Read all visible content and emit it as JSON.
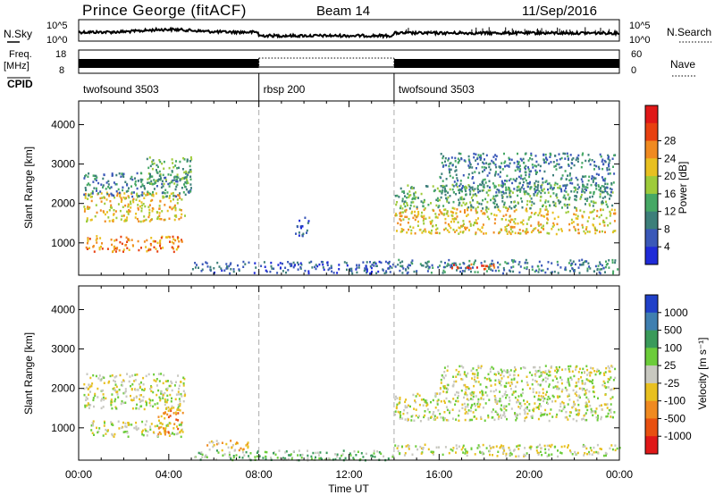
{
  "header": {
    "station": "Prince George (fitACF)",
    "beam": "Beam 14",
    "date": "11/Sep/2016"
  },
  "top_panels": {
    "nsky_label": "N.Sky",
    "nsky_ticks": [
      "10^5",
      "10^0"
    ],
    "nsearch_label": "N.Search",
    "freq_label": "Freq.",
    "freq_unit": "[MHz]",
    "freq_ticks": [
      "18",
      "8"
    ],
    "nave_label": "Nave",
    "nave_ticks": [
      "60",
      "0"
    ],
    "cpid_label": "CPID",
    "cpid_segments": [
      {
        "name": "twofsound 3503",
        "start": 0,
        "end": 8
      },
      {
        "name": "rbsp 200",
        "start": 8,
        "end": 14
      },
      {
        "name": "twofsound 3503",
        "start": 14,
        "end": 24
      }
    ]
  },
  "chart_data": [
    {
      "type": "heatmap",
      "panel": "power",
      "xlabel": "",
      "ylabel": "Slant Range [km]",
      "xlim": [
        0,
        24
      ],
      "ylim": [
        180,
        4600
      ],
      "yticks": [
        "1000",
        "2000",
        "3000",
        "4000"
      ],
      "colorbar_label": "Power [dB]",
      "colorbar_ticks": [
        "4",
        "8",
        "12",
        "16",
        "20",
        "24",
        "28"
      ],
      "colors": [
        "#1f2bd8",
        "#3a58b8",
        "#3d7f7a",
        "#46a865",
        "#9ecb3a",
        "#e8c020",
        "#f08a20",
        "#e84010",
        "#e01818"
      ],
      "mode_boundaries": [
        8,
        14
      ],
      "echo_regions": [
        {
          "t0": 0.2,
          "t1": 4.7,
          "r0": 1550,
          "r1": 2300,
          "level": 5
        },
        {
          "t0": 0.3,
          "t1": 4.6,
          "r0": 800,
          "r1": 1200,
          "level": 6
        },
        {
          "t0": 0.2,
          "t1": 5.0,
          "r0": 2200,
          "r1": 2800,
          "level": 2
        },
        {
          "t0": 3.0,
          "t1": 5.0,
          "r0": 2500,
          "r1": 3200,
          "level": 3
        },
        {
          "t0": 9.6,
          "t1": 10.2,
          "r0": 1200,
          "r1": 1700,
          "level": 1
        },
        {
          "t0": 5.0,
          "t1": 14.0,
          "r0": 250,
          "r1": 550,
          "level": 1
        },
        {
          "t0": 14.0,
          "t1": 23.8,
          "r0": 1250,
          "r1": 1900,
          "level": 5
        },
        {
          "t0": 14.0,
          "t1": 23.8,
          "r0": 1900,
          "r1": 2500,
          "level": 3
        },
        {
          "t0": 16.0,
          "t1": 23.8,
          "r0": 2300,
          "r1": 3300,
          "level": 2
        },
        {
          "t0": 14.0,
          "t1": 24.0,
          "r0": 250,
          "r1": 600,
          "level": 2
        },
        {
          "t0": 16.5,
          "t1": 18.5,
          "r0": 350,
          "r1": 500,
          "level": 7
        }
      ]
    },
    {
      "type": "heatmap",
      "panel": "velocity",
      "xlabel": "Time UT",
      "ylabel": "Slant Range [km]",
      "xlim": [
        0,
        24
      ],
      "ylim": [
        180,
        4600
      ],
      "xticks": [
        "00:00",
        "04:00",
        "08:00",
        "12:00",
        "16:00",
        "20:00",
        "00:00"
      ],
      "yticks": [
        "1000",
        "2000",
        "3000",
        "4000"
      ],
      "colorbar_label": "Velocity [m s⁻¹]",
      "colorbar_ticks": [
        "1000",
        "500",
        "100",
        "25",
        "-25",
        "-100",
        "-500",
        "-1000"
      ],
      "colors": [
        "#2040c8",
        "#3f7fb0",
        "#3a9a5a",
        "#6ccc3a",
        "#c8c8c0",
        "#e8c020",
        "#f08a20",
        "#e85010",
        "#e01818"
      ],
      "mode_boundaries": [
        8,
        14
      ],
      "echo_regions": [
        {
          "t0": 0.2,
          "t1": 4.7,
          "r0": 1500,
          "r1": 2400,
          "level": 4
        },
        {
          "t0": 0.5,
          "t1": 4.6,
          "r0": 800,
          "r1": 1200,
          "level": 4
        },
        {
          "t0": 3.5,
          "t1": 4.6,
          "r0": 850,
          "r1": 1500,
          "level": 6
        },
        {
          "t0": 5.5,
          "t1": 7.5,
          "r0": 450,
          "r1": 700,
          "level": 5
        },
        {
          "t0": 5.0,
          "t1": 14.0,
          "r0": 200,
          "r1": 450,
          "level": 3
        },
        {
          "t0": 14.0,
          "t1": 23.8,
          "r0": 1200,
          "r1": 1900,
          "level": 4
        },
        {
          "t0": 16.0,
          "t1": 23.8,
          "r0": 1900,
          "r1": 2600,
          "level": 4
        },
        {
          "t0": 14.0,
          "t1": 24.0,
          "r0": 300,
          "r1": 600,
          "level": 4
        }
      ]
    }
  ]
}
